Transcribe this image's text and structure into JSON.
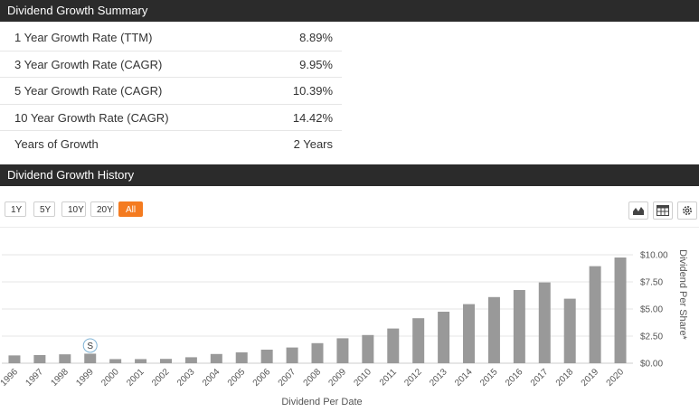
{
  "summary": {
    "title": "Dividend Growth Summary",
    "rows": [
      {
        "label": "1 Year Growth Rate (TTM)",
        "value": "8.89%"
      },
      {
        "label": "3 Year Growth Rate (CAGR)",
        "value": "9.95%"
      },
      {
        "label": "5 Year Growth Rate (CAGR)",
        "value": "10.39%"
      },
      {
        "label": "10 Year Growth Rate (CAGR)",
        "value": "14.42%"
      },
      {
        "label": "Years of Growth",
        "value": "2 Years"
      }
    ]
  },
  "history": {
    "title": "Dividend Growth History",
    "range_buttons": [
      "1Y",
      "5Y",
      "10Y",
      "20Y",
      "All"
    ],
    "active_range": "All",
    "tools": [
      "area-chart-icon",
      "table-icon",
      "gear-icon"
    ]
  },
  "chart_data": {
    "type": "bar",
    "categories": [
      "1996",
      "1997",
      "1998",
      "1999",
      "2000",
      "2001",
      "2002",
      "2003",
      "2004",
      "2005",
      "2006",
      "2007",
      "2008",
      "2009",
      "2010",
      "2011",
      "2012",
      "2013",
      "2014",
      "2015",
      "2016",
      "2017",
      "2018",
      "2019",
      "2020"
    ],
    "series": [
      {
        "values": [
          0.72,
          0.75,
          0.82,
          0.88,
          0.38,
          0.38,
          0.4,
          0.55,
          0.85,
          1.0,
          1.25,
          1.45,
          1.85,
          2.3,
          2.6,
          3.2,
          4.15,
          4.75,
          5.45,
          6.1,
          6.75,
          7.45,
          5.95,
          8.95,
          9.75
        ]
      }
    ],
    "xlabel": "Dividend Per Date",
    "ylabel": "Dividend Per Share*",
    "yticks": [
      "$0.00",
      "$2.50",
      "$5.00",
      "$7.50",
      "$10.00"
    ],
    "ylim": [
      0,
      10
    ],
    "grid": true,
    "bar_color": "#999999",
    "flag": {
      "category": "1999",
      "label": "S"
    }
  }
}
